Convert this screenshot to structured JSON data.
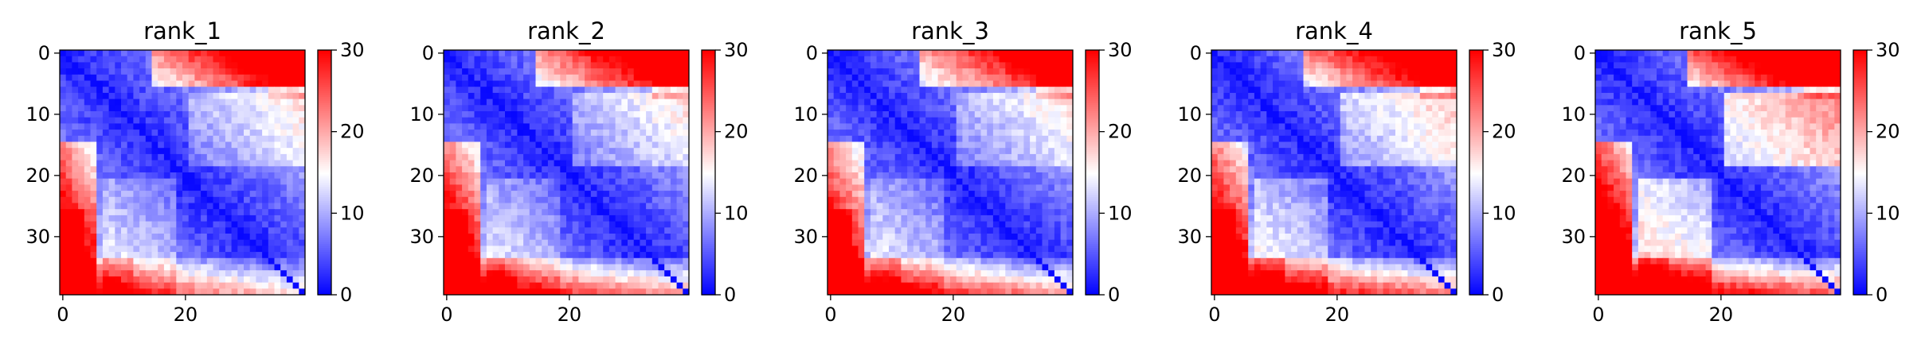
{
  "chart_data": [
    {
      "type": "heatmap",
      "title": "rank_1",
      "x_ticks": [
        "0",
        "20"
      ],
      "y_ticks": [
        "0",
        "10",
        "20",
        "30"
      ],
      "colorbar": {
        "ticks": [
          "0",
          "10",
          "20",
          "30"
        ],
        "range": [
          0,
          30
        ],
        "colormap": "bwr"
      },
      "matrix_size": 40,
      "variant": "rank_1"
    },
    {
      "type": "heatmap",
      "title": "rank_2",
      "x_ticks": [
        "0",
        "20"
      ],
      "y_ticks": [
        "0",
        "10",
        "20",
        "30"
      ],
      "colorbar": {
        "ticks": [
          "0",
          "10",
          "20",
          "30"
        ],
        "range": [
          0,
          30
        ],
        "colormap": "bwr"
      },
      "matrix_size": 40,
      "variant": "rank_2"
    },
    {
      "type": "heatmap",
      "title": "rank_3",
      "x_ticks": [
        "0",
        "20"
      ],
      "y_ticks": [
        "0",
        "10",
        "20",
        "30"
      ],
      "colorbar": {
        "ticks": [
          "0",
          "10",
          "20",
          "30"
        ],
        "range": [
          0,
          30
        ],
        "colormap": "bwr"
      },
      "matrix_size": 40,
      "variant": "rank_3"
    },
    {
      "type": "heatmap",
      "title": "rank_4",
      "x_ticks": [
        "0",
        "20"
      ],
      "y_ticks": [
        "0",
        "10",
        "20",
        "30"
      ],
      "colorbar": {
        "ticks": [
          "0",
          "10",
          "20",
          "30"
        ],
        "range": [
          0,
          30
        ],
        "colormap": "bwr"
      },
      "matrix_size": 40,
      "variant": "rank_4"
    },
    {
      "type": "heatmap",
      "title": "rank_5",
      "x_ticks": [
        "0",
        "20"
      ],
      "y_ticks": [
        "0",
        "10",
        "20",
        "30"
      ],
      "colorbar": {
        "ticks": [
          "0",
          "10",
          "20",
          "30"
        ],
        "range": [
          0,
          30
        ],
        "colormap": "bwr"
      },
      "matrix_size": 40,
      "variant": "rank_5"
    }
  ],
  "colors": {
    "low": "#0000ff",
    "mid": "#ffffff",
    "high": "#ff0000"
  }
}
